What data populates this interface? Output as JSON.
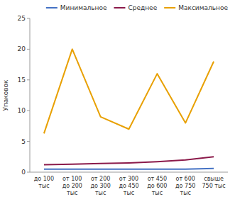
{
  "chart_data": {
    "type": "line",
    "ylabel": "Упаковок",
    "categories": [
      "до 100\nтыс",
      "от 100\nдо 200\nтыс",
      "от 200\nдо 300\nтыс",
      "от 300\nдо 450\nтыс",
      "от 450\nдо 600\nтыс",
      "от 600\nдо 750\nтыс",
      "свыше\n750 тыс"
    ],
    "series": [
      {
        "name": "Минимальное",
        "color": "#4472C4",
        "values": [
          0.5,
          0.5,
          0.5,
          0.5,
          0.5,
          0.5,
          0.6
        ]
      },
      {
        "name": "Среднее",
        "color": "#8B1A4A",
        "values": [
          1.2,
          1.3,
          1.4,
          1.5,
          1.7,
          2.0,
          2.5
        ]
      },
      {
        "name": "Максимальное",
        "color": "#E8A000",
        "values": [
          6.3,
          20.0,
          9.0,
          7.0,
          16.0,
          8.0,
          18.0
        ]
      }
    ],
    "ylim": [
      0,
      25
    ],
    "yticks": [
      0,
      5,
      10,
      15,
      20,
      25
    ],
    "grid": false,
    "legend": "upper right"
  }
}
